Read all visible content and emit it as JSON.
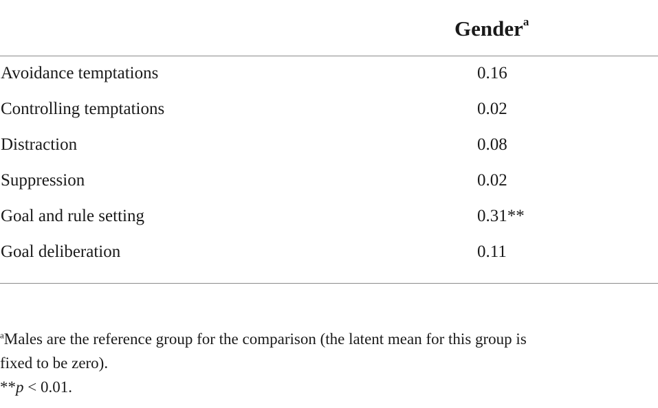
{
  "table": {
    "column_header": "Gender",
    "column_header_marker": "a",
    "rows": [
      {
        "label": "Avoidance temptations",
        "value": "0.16"
      },
      {
        "label": "Controlling temptations",
        "value": "0.02"
      },
      {
        "label": "Distraction",
        "value": "0.08"
      },
      {
        "label": "Suppression",
        "value": "0.02"
      },
      {
        "label": "Goal and rule setting",
        "value": "0.31**"
      },
      {
        "label": "Goal deliberation",
        "value": "0.11"
      }
    ]
  },
  "footnotes": {
    "note_a_marker": "a",
    "note_a_line1": "Males are the reference group for the comparison (the latent mean for this group is",
    "note_a_line2": "fixed to be zero).",
    "note_sig_stars": "**",
    "note_sig_p": "p",
    "note_sig_rest": " < 0.01."
  }
}
